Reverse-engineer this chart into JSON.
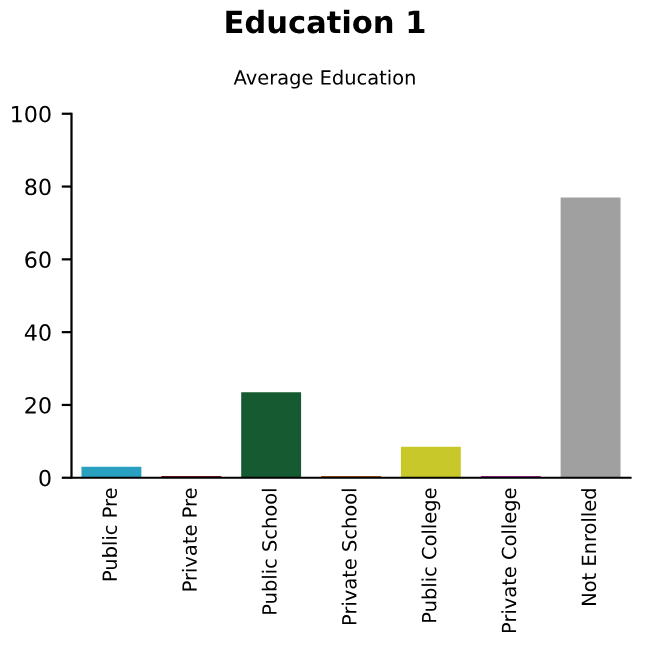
{
  "chart_data": {
    "type": "bar",
    "title": "Education 1",
    "subtitle": "Average Education",
    "categories": [
      "Public Pre",
      "Private Pre",
      "Public School",
      "Private School",
      "Public College",
      "Private College",
      "Not Enrolled"
    ],
    "values": [
      3,
      0.5,
      23.5,
      0.5,
      8.5,
      0.5,
      77
    ],
    "colors": [
      "#2aa0c0",
      "#7a1414",
      "#165a32",
      "#a8561e",
      "#c8c82a",
      "#9e2a90",
      "#a0a0a0"
    ],
    "ylim": [
      0,
      100
    ],
    "yticks": [
      0,
      20,
      40,
      60,
      80,
      100
    ],
    "grid": false
  }
}
